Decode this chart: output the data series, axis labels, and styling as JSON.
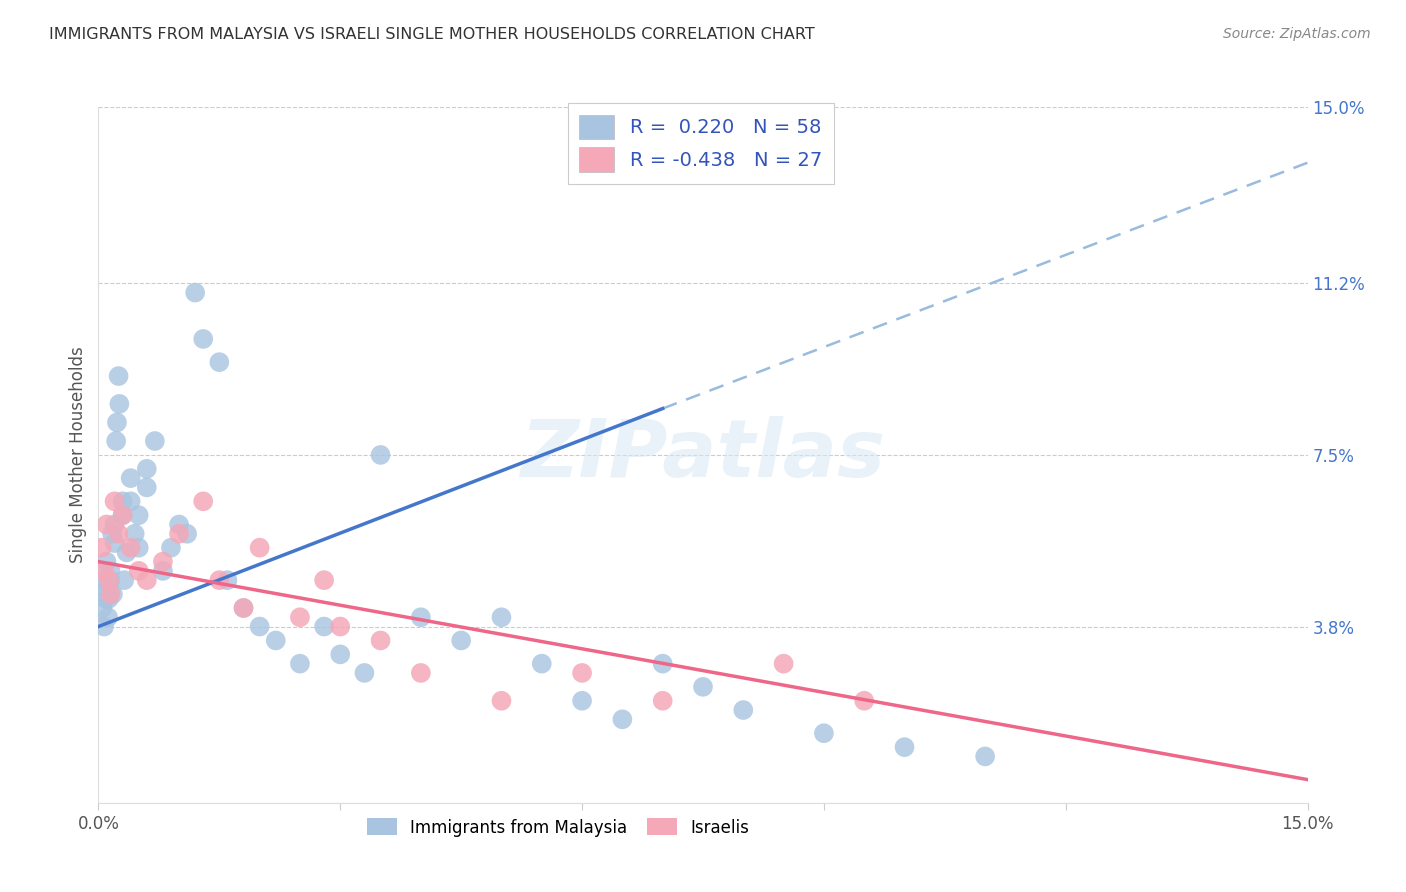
{
  "title": "IMMIGRANTS FROM MALAYSIA VS ISRAELI SINGLE MOTHER HOUSEHOLDS CORRELATION CHART",
  "source": "Source: ZipAtlas.com",
  "ylabel": "Single Mother Households",
  "xlim": [
    0.0,
    0.15
  ],
  "ylim": [
    0.0,
    0.15
  ],
  "R_blue": 0.22,
  "N_blue": 58,
  "R_pink": -0.438,
  "N_pink": 27,
  "blue_color": "#A8C4E0",
  "pink_color": "#F4A8B8",
  "line_blue": "#4477CC",
  "line_pink": "#EE6688",
  "line_dashed_color": "#99BBDD",
  "blue_x": [
    0.0003,
    0.0005,
    0.0007,
    0.0009,
    0.001,
    0.001,
    0.0012,
    0.0013,
    0.0015,
    0.0015,
    0.0017,
    0.0018,
    0.002,
    0.002,
    0.0022,
    0.0023,
    0.0025,
    0.0026,
    0.003,
    0.003,
    0.0032,
    0.0035,
    0.004,
    0.004,
    0.0045,
    0.005,
    0.005,
    0.006,
    0.006,
    0.007,
    0.008,
    0.009,
    0.01,
    0.011,
    0.012,
    0.013,
    0.015,
    0.016,
    0.018,
    0.02,
    0.022,
    0.025,
    0.028,
    0.03,
    0.033,
    0.035,
    0.04,
    0.045,
    0.05,
    0.055,
    0.06,
    0.065,
    0.07,
    0.075,
    0.08,
    0.09,
    0.1,
    0.11
  ],
  "blue_y": [
    0.048,
    0.042,
    0.038,
    0.044,
    0.052,
    0.046,
    0.04,
    0.044,
    0.05,
    0.048,
    0.058,
    0.045,
    0.06,
    0.056,
    0.078,
    0.082,
    0.092,
    0.086,
    0.062,
    0.065,
    0.048,
    0.054,
    0.065,
    0.07,
    0.058,
    0.055,
    0.062,
    0.068,
    0.072,
    0.078,
    0.05,
    0.055,
    0.06,
    0.058,
    0.11,
    0.1,
    0.095,
    0.048,
    0.042,
    0.038,
    0.035,
    0.03,
    0.038,
    0.032,
    0.028,
    0.075,
    0.04,
    0.035,
    0.04,
    0.03,
    0.022,
    0.018,
    0.03,
    0.025,
    0.02,
    0.015,
    0.012,
    0.01
  ],
  "pink_x": [
    0.0004,
    0.0007,
    0.001,
    0.0013,
    0.0015,
    0.002,
    0.0025,
    0.003,
    0.004,
    0.005,
    0.006,
    0.008,
    0.01,
    0.013,
    0.015,
    0.018,
    0.02,
    0.025,
    0.028,
    0.03,
    0.035,
    0.04,
    0.05,
    0.06,
    0.07,
    0.085,
    0.095
  ],
  "pink_y": [
    0.055,
    0.05,
    0.06,
    0.048,
    0.045,
    0.065,
    0.058,
    0.062,
    0.055,
    0.05,
    0.048,
    0.052,
    0.058,
    0.065,
    0.048,
    0.042,
    0.055,
    0.04,
    0.048,
    0.038,
    0.035,
    0.028,
    0.022,
    0.028,
    0.022,
    0.03,
    0.022
  ],
  "blue_line_x0": 0.0,
  "blue_line_y0": 0.038,
  "blue_line_x1": 0.07,
  "blue_line_y1": 0.085,
  "dashed_line_x0": 0.07,
  "dashed_line_y0": 0.085,
  "dashed_line_x1": 0.15,
  "dashed_line_y1": 0.138,
  "pink_line_x0": 0.0,
  "pink_line_y0": 0.052,
  "pink_line_x1": 0.15,
  "pink_line_y1": 0.005,
  "ytick_pos": [
    0.0,
    0.038,
    0.075,
    0.112,
    0.15
  ],
  "ytick_lab": [
    "",
    "3.8%",
    "7.5%",
    "11.2%",
    "15.0%"
  ],
  "xtick_pos": [
    0.0,
    0.03,
    0.06,
    0.09,
    0.12,
    0.15
  ],
  "xtick_lab": [
    "0.0%",
    "",
    "",
    "",
    "",
    "15.0%"
  ],
  "watermark_text": "ZIPatlas",
  "legend_label_blue": "R =  0.220   N = 58",
  "legend_label_pink": "R = -0.438   N = 27",
  "bottom_legend_blue": "Immigrants from Malaysia",
  "bottom_legend_pink": "Israelis"
}
